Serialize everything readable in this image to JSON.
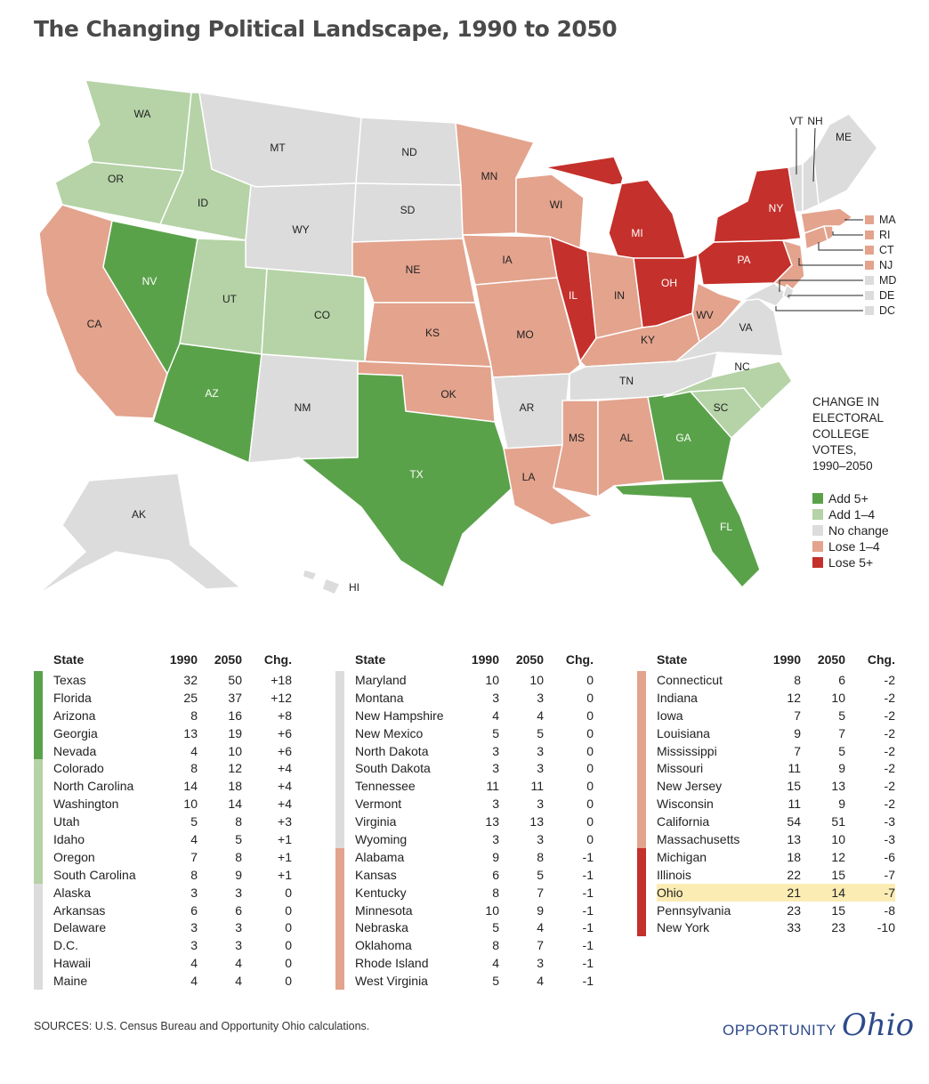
{
  "title": "The Changing Political Landscape, 1990 to 2050",
  "colors": {
    "add5": "#5aa24a",
    "add14": "#b5d3a6",
    "none": "#dcdcdc",
    "lose14": "#e3a38d",
    "lose5": "#c4302b",
    "highlight": "#fbecb4"
  },
  "legend": {
    "title_lines": [
      "CHANGE IN",
      "ELECTORAL",
      "COLLEGE",
      "VOTES,",
      "1990–2050"
    ],
    "items": [
      {
        "label": "Add 5+",
        "cat": "add5"
      },
      {
        "label": "Add 1–4",
        "cat": "add14"
      },
      {
        "label": "No change",
        "cat": "none"
      },
      {
        "label": "Lose 1–4",
        "cat": "lose14"
      },
      {
        "label": "Lose 5+",
        "cat": "lose5"
      }
    ]
  },
  "callouts": {
    "top": [
      "VT",
      "NH"
    ],
    "right": [
      "MA",
      "RI",
      "CT",
      "NJ",
      "MD",
      "DE",
      "DC"
    ]
  },
  "table_headers": {
    "state": "State",
    "y1990": "1990",
    "y2050": "2050",
    "chg": "Chg."
  },
  "tables": [
    [
      [
        "Texas",
        32,
        50,
        "+18",
        "add5"
      ],
      [
        "Florida",
        25,
        37,
        "+12",
        "add5"
      ],
      [
        "Arizona",
        8,
        16,
        "+8",
        "add5"
      ],
      [
        "Georgia",
        13,
        19,
        "+6",
        "add5"
      ],
      [
        "Nevada",
        4,
        10,
        "+6",
        "add5"
      ],
      [
        "Colorado",
        8,
        12,
        "+4",
        "add14"
      ],
      [
        "North Carolina",
        14,
        18,
        "+4",
        "add14"
      ],
      [
        "Washington",
        10,
        14,
        "+4",
        "add14"
      ],
      [
        "Utah",
        5,
        8,
        "+3",
        "add14"
      ],
      [
        "Idaho",
        4,
        5,
        "+1",
        "add14"
      ],
      [
        "Oregon",
        7,
        8,
        "+1",
        "add14"
      ],
      [
        "South Carolina",
        8,
        9,
        "+1",
        "add14"
      ],
      [
        "Alaska",
        3,
        3,
        "0",
        "none"
      ],
      [
        "Arkansas",
        6,
        6,
        "0",
        "none"
      ],
      [
        "Delaware",
        3,
        3,
        "0",
        "none"
      ],
      [
        "D.C.",
        3,
        3,
        "0",
        "none"
      ],
      [
        "Hawaii",
        4,
        4,
        "0",
        "none"
      ],
      [
        "Maine",
        4,
        4,
        "0",
        "none"
      ]
    ],
    [
      [
        "Maryland",
        10,
        10,
        "0",
        "none"
      ],
      [
        "Montana",
        3,
        3,
        "0",
        "none"
      ],
      [
        "New Hampshire",
        4,
        4,
        "0",
        "none"
      ],
      [
        "New Mexico",
        5,
        5,
        "0",
        "none"
      ],
      [
        "North Dakota",
        3,
        3,
        "0",
        "none"
      ],
      [
        "South Dakota",
        3,
        3,
        "0",
        "none"
      ],
      [
        "Tennessee",
        11,
        11,
        "0",
        "none"
      ],
      [
        "Vermont",
        3,
        3,
        "0",
        "none"
      ],
      [
        "Virginia",
        13,
        13,
        "0",
        "none"
      ],
      [
        "Wyoming",
        3,
        3,
        "0",
        "none"
      ],
      [
        "Alabama",
        9,
        8,
        "-1",
        "lose14"
      ],
      [
        "Kansas",
        6,
        5,
        "-1",
        "lose14"
      ],
      [
        "Kentucky",
        8,
        7,
        "-1",
        "lose14"
      ],
      [
        "Minnesota",
        10,
        9,
        "-1",
        "lose14"
      ],
      [
        "Nebraska",
        5,
        4,
        "-1",
        "lose14"
      ],
      [
        "Oklahoma",
        8,
        7,
        "-1",
        "lose14"
      ],
      [
        "Rhode Island",
        4,
        3,
        "-1",
        "lose14"
      ],
      [
        "West Virginia",
        5,
        4,
        "-1",
        "lose14"
      ]
    ],
    [
      [
        "Connecticut",
        8,
        6,
        "-2",
        "lose14"
      ],
      [
        "Indiana",
        12,
        10,
        "-2",
        "lose14"
      ],
      [
        "Iowa",
        7,
        5,
        "-2",
        "lose14"
      ],
      [
        "Louisiana",
        9,
        7,
        "-2",
        "lose14"
      ],
      [
        "Mississippi",
        7,
        5,
        "-2",
        "lose14"
      ],
      [
        "Missouri",
        11,
        9,
        "-2",
        "lose14"
      ],
      [
        "New Jersey",
        15,
        13,
        "-2",
        "lose14"
      ],
      [
        "Wisconsin",
        11,
        9,
        "-2",
        "lose14"
      ],
      [
        "California",
        54,
        51,
        "-3",
        "lose14"
      ],
      [
        "Massachusetts",
        13,
        10,
        "-3",
        "lose14"
      ],
      [
        "Michigan",
        18,
        12,
        "-6",
        "lose5"
      ],
      [
        "Illinois",
        22,
        15,
        "-7",
        "lose5"
      ],
      [
        "Ohio",
        21,
        14,
        "-7",
        "lose5"
      ],
      [
        "Pennsylvania",
        23,
        15,
        "-8",
        "lose5"
      ],
      [
        "New York",
        33,
        23,
        "-10",
        "lose5"
      ]
    ]
  ],
  "highlight_state": "Ohio",
  "source": "SOURCES: U.S. Census Bureau and Opportunity Ohio calculations.",
  "brand": {
    "word1": "OPPORTUNITY",
    "word2": "Ohio"
  }
}
